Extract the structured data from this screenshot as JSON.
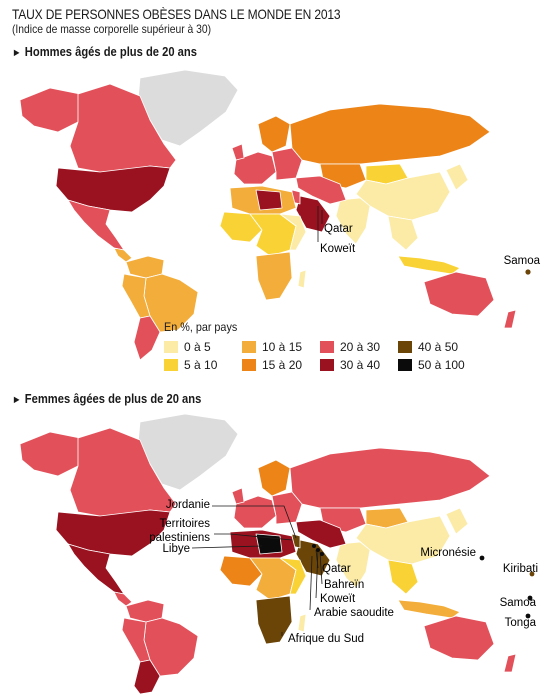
{
  "title": "TAUX DE PERSONNES OBÈSES DANS LE MONDE EN 2013",
  "subtitle": "(Indice de masse corporelle supérieur à 30)",
  "sections": [
    {
      "heading": "Hommes âgés de plus de 20 ans",
      "labels": {
        "qatar": "Qatar",
        "koweit": "Koweït",
        "samoa": "Samoa"
      }
    },
    {
      "heading": "Femmes âgées de plus de 20 ans",
      "labels": {
        "jordanie": "Jordanie",
        "territoires": "Territoires",
        "palestiniens": "palestiniens",
        "libye": "Libye",
        "qatar": "Qatar",
        "bahrein": "Bahreïn",
        "koweit": "Koweït",
        "arabie": "Arabie saoudite",
        "afrique_sud": "Afrique du Sud",
        "micronesie": "Micronésie",
        "kiribati": "Kiribati",
        "samoa": "Samoa",
        "tonga": "Tonga"
      }
    }
  ],
  "legend": {
    "title": "En %, par pays",
    "items": [
      {
        "label": "0 à 5",
        "color": "#fbeba6"
      },
      {
        "label": "10 à 15",
        "color": "#f3ad3a"
      },
      {
        "label": "20 à 30",
        "color": "#e2515a"
      },
      {
        "label": "40 à 50",
        "color": "#6b4408"
      },
      {
        "label": "5 à 10",
        "color": "#f9d236"
      },
      {
        "label": "15 à 20",
        "color": "#ec8418"
      },
      {
        "label": "30 à 40",
        "color": "#9a1220"
      },
      {
        "label": "50 à 100",
        "color": "#0b0b0b"
      }
    ]
  },
  "colors": {
    "no_data": "#dcdcdc",
    "border": "#ffffff"
  }
}
